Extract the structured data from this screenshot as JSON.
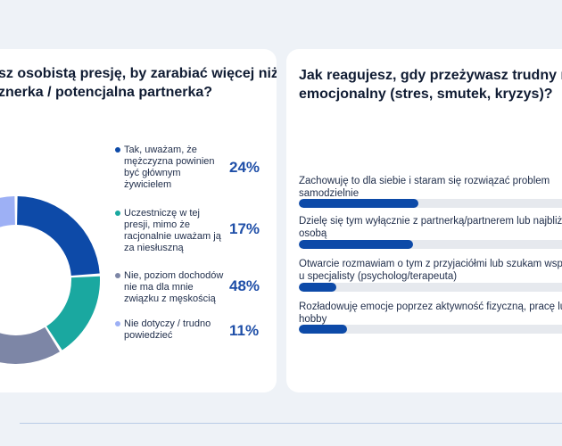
{
  "colors": {
    "background": "#eef2f7",
    "card": "#ffffff",
    "accent": "#1f4fa8",
    "bar_fill": "#0d4aa8",
    "bar_track": "#e6e9ee"
  },
  "left_card": {
    "title_line1": "sz osobistą presję, by zarabiać więcej niż",
    "title_line2": "znerka / potencjalna partnerka?"
  },
  "right_card": {
    "title_line1": "Jak reagujesz, gdy przeżywasz trudny m",
    "title_line2": "emocjonalny (stres, smutek, kryzys)?"
  },
  "chart_data": [
    {
      "type": "pie",
      "variant": "donut",
      "title": "",
      "categories": [
        "Tak, uważam, że mężczyzna powinien być głównym żywicielem",
        "Uczestniczę w tej presji, mimo że racjonalnie uważam ją za niesłuszną",
        "Nie, poziom dochodów nie ma dla mnie związku z męskością",
        "Nie dotyczy / trudno powiedzieć"
      ],
      "values": [
        24,
        17,
        48,
        11
      ],
      "value_labels": [
        "24%",
        "17%",
        "48%",
        "11%"
      ],
      "colors": [
        "#0d4aa8",
        "#1aa8a0",
        "#7d86a6",
        "#9db0f5"
      ],
      "legend": "right"
    },
    {
      "type": "bar",
      "orientation": "horizontal",
      "title": "",
      "categories": [
        "Zachowuję to dla siebie i staram się rozwiązać problem\nsamodzielnie",
        "Dzielę się tym wyłącznie z partnerką/partnerem lub najbliżs\nosobą",
        "Otwarcie rozmawiam o tym z przyjaciółmi lub szukam wspa\nu specjalisty (psycholog/terapeuta)",
        "Rozładowuję emocje poprzez aktywność fizyczną, pracę lu\nhobby"
      ],
      "values": [
        42,
        40,
        13,
        17
      ],
      "xlim": [
        0,
        100
      ],
      "value_labels_visible": false
    }
  ]
}
